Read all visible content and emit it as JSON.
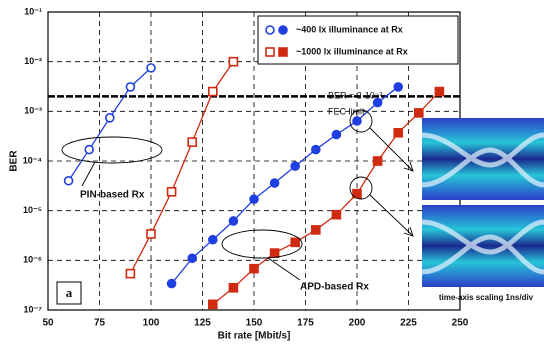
{
  "chart_data": {
    "type": "line",
    "x_label": "Bit rate [Mbit/s]",
    "y_label": "BER",
    "log_y": true,
    "grid": true,
    "xlim": [
      50,
      250
    ],
    "xticks": [
      50,
      75,
      100,
      125,
      150,
      175,
      200,
      225,
      250
    ],
    "ylim": [
      0.1,
      1e-07
    ],
    "yticks": [
      {
        "value": 0.1,
        "label": "10⁻¹"
      },
      {
        "value": 0.01,
        "label": "10⁻²"
      },
      {
        "value": 0.001,
        "label": "10⁻³"
      },
      {
        "value": 0.0001,
        "label": "10⁻⁴"
      },
      {
        "value": 1e-05,
        "label": "10⁻⁵"
      },
      {
        "value": 1e-06,
        "label": "10⁻⁶"
      },
      {
        "value": 1e-07,
        "label": "10⁻⁷"
      }
    ],
    "series": [
      {
        "name": "~400 lx illuminance at Rx",
        "color": "#1f3fe0",
        "groups": [
          {
            "marker": "hollow",
            "x": [
              60,
              70,
              80,
              90,
              100
            ],
            "values": [
              4e-05,
              0.00017,
              0.00074,
              0.0031,
              0.0075
            ]
          },
          {
            "marker": "filled",
            "x": [
              110,
              120,
              130,
              140,
              150,
              160,
              170,
              180,
              190,
              200,
              210,
              220
            ],
            "values": [
              3.4e-07,
              1.1e-06,
              2.6e-06,
              6.2e-06,
              1.7e-05,
              3.6e-05,
              7.9e-05,
              0.00017,
              0.00034,
              0.00064,
              0.0015,
              0.0031
            ]
          }
        ]
      },
      {
        "name": "~1000 lx illuminance at Rx",
        "color": "#d02a10",
        "groups": [
          {
            "marker": "hollow",
            "x": [
              90,
              100,
              110,
              120,
              130,
              140
            ],
            "values": [
              5.4e-07,
              3.4e-06,
              2.4e-05,
              0.00024,
              0.0025,
              0.01
            ]
          },
          {
            "marker": "filled",
            "x": [
              130,
              140,
              150,
              160,
              170,
              180,
              190,
              200,
              210,
              220,
              230,
              240
            ],
            "values": [
              1.3e-07,
              2.8e-07,
              6.8e-07,
              1.4e-06,
              2.3e-06,
              4.1e-06,
              8.3e-06,
              2.2e-05,
              0.0001,
              0.00037,
              0.00093,
              0.0025
            ]
          }
        ]
      }
    ],
    "fec_ber": 0.002,
    "annotations": {
      "fec_value": "BER = 2·10⁻³",
      "fec_label": "FEC limit",
      "pin": "PIN-based Rx",
      "apd": "APD-based Rx",
      "panel": "a",
      "eye_caption": "time-axis scaling 1ns/div"
    }
  }
}
